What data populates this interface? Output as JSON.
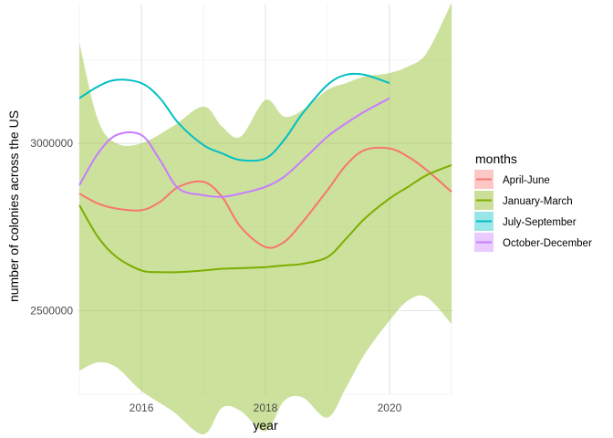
{
  "chart_data": {
    "type": "line",
    "title": "",
    "xlabel": "year",
    "ylabel": "number of colonies across the US",
    "xlim": [
      2014.97,
      2021.03
    ],
    "ylim": [
      2250000,
      3415000
    ],
    "x_ticks": [
      2016,
      2018,
      2020
    ],
    "x_tick_labels": [
      "2016",
      "2018",
      "2020"
    ],
    "x_minor_ticks": [
      2015,
      2017,
      2019,
      2021
    ],
    "y_ticks": [
      2500000,
      3000000
    ],
    "y_tick_labels": [
      "2500000",
      "3000000"
    ],
    "y_minor_ticks": [
      2250000,
      2750000,
      3250000
    ],
    "grid": true,
    "legend": {
      "title": "months",
      "position": "right"
    },
    "band": {
      "series": "January-March",
      "color": "#a3c84a",
      "opacity": 0.55,
      "x": [
        2015.0,
        2015.3,
        2015.6,
        2016.0,
        2016.5,
        2017.0,
        2017.3,
        2017.6,
        2018.0,
        2018.3,
        2018.6,
        2019.0,
        2019.3,
        2019.6,
        2020.0,
        2020.3,
        2020.6,
        2021.0
      ],
      "upper": [
        3300000,
        3070000,
        3000000,
        3000000,
        3050000,
        3110000,
        3050000,
        3020000,
        3130000,
        3080000,
        3100000,
        3160000,
        3180000,
        3200000,
        3210000,
        3230000,
        3270000,
        3420000
      ],
      "lower": [
        2320000,
        2345000,
        2330000,
        2260000,
        2200000,
        2130000,
        2210000,
        2200000,
        2140000,
        2230000,
        2240000,
        2180000,
        2270000,
        2370000,
        2470000,
        2530000,
        2540000,
        2460000
      ]
    },
    "series": [
      {
        "name": "April-June",
        "color": "#f8766d",
        "x": [
          2015.0,
          2015.3,
          2015.6,
          2016.0,
          2016.3,
          2016.6,
          2017.0,
          2017.3,
          2017.6,
          2018.0,
          2018.3,
          2018.6,
          2019.0,
          2019.3,
          2019.6,
          2020.0,
          2020.3,
          2020.6,
          2021.0
        ],
        "values": [
          2850000,
          2820000,
          2805000,
          2800000,
          2825000,
          2870000,
          2885000,
          2840000,
          2750000,
          2690000,
          2705000,
          2765000,
          2860000,
          2935000,
          2980000,
          2985000,
          2960000,
          2920000,
          2855000
        ]
      },
      {
        "name": "January-March",
        "color": "#7cae00",
        "x": [
          2015.0,
          2015.3,
          2015.6,
          2016.0,
          2016.3,
          2016.6,
          2017.0,
          2017.3,
          2017.6,
          2018.0,
          2018.3,
          2018.6,
          2019.0,
          2019.3,
          2019.6,
          2020.0,
          2020.3,
          2020.6,
          2021.0
        ],
        "values": [
          2815000,
          2720000,
          2660000,
          2620000,
          2615000,
          2615000,
          2620000,
          2625000,
          2627000,
          2630000,
          2635000,
          2640000,
          2660000,
          2715000,
          2775000,
          2835000,
          2870000,
          2905000,
          2935000
        ]
      },
      {
        "name": "July-September",
        "color": "#00bfc4",
        "x": [
          2015.0,
          2015.3,
          2015.6,
          2016.0,
          2016.3,
          2016.6,
          2017.0,
          2017.3,
          2017.6,
          2018.0,
          2018.3,
          2018.6,
          2019.0,
          2019.3,
          2019.6,
          2020.0
        ],
        "values": [
          3135000,
          3170000,
          3190000,
          3180000,
          3135000,
          3060000,
          2995000,
          2970000,
          2950000,
          2955000,
          3010000,
          3090000,
          3175000,
          3205000,
          3205000,
          3180000
        ]
      },
      {
        "name": "October-December",
        "color": "#c77cff",
        "x": [
          2015.0,
          2015.3,
          2015.6,
          2016.0,
          2016.3,
          2016.6,
          2017.0,
          2017.3,
          2017.6,
          2018.0,
          2018.3,
          2018.6,
          2019.0,
          2019.3,
          2019.6,
          2020.0
        ],
        "values": [
          2875000,
          2970000,
          3025000,
          3025000,
          2950000,
          2865000,
          2845000,
          2840000,
          2850000,
          2870000,
          2900000,
          2950000,
          3020000,
          3060000,
          3095000,
          3135000
        ]
      }
    ]
  }
}
